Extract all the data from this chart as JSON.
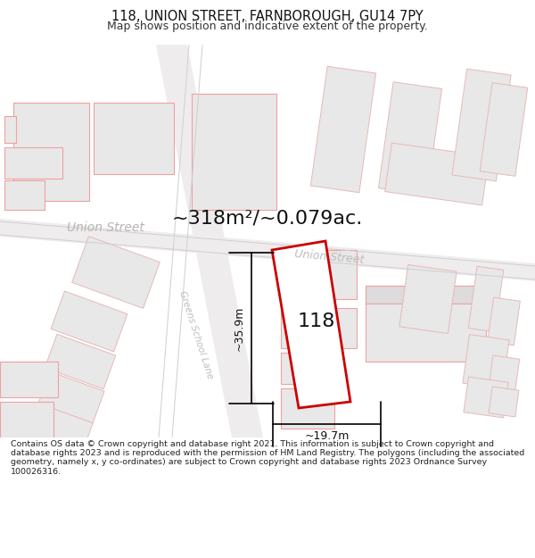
{
  "title": "118, UNION STREET, FARNBOROUGH, GU14 7PY",
  "subtitle": "Map shows position and indicative extent of the property.",
  "footer": "Contains OS data © Crown copyright and database right 2021. This information is subject to Crown copyright and database rights 2023 and is reproduced with the permission of HM Land Registry. The polygons (including the associated geometry, namely x, y co-ordinates) are subject to Crown copyright and database rights 2023 Ordnance Survey 100026316.",
  "area_label": "~318m²/~0.079ac.",
  "number_label": "118",
  "dim_height": "~35.9m",
  "dim_width": "~19.7m",
  "street_label_union_left": "Union Street",
  "street_label_union_road": "Union Street",
  "street_label_greens": "Greens School Lane",
  "map_bg": "#ffffff",
  "page_bg": "#ffffff",
  "building_fill": "#e8e8e8",
  "building_stroke": "#f0a0a0",
  "building_stroke_dark": "#d0d0d0",
  "prop_fill": "#ffffff",
  "prop_stroke": "#cc0000",
  "dim_color": "#111111",
  "street_color_main": "#b0b0b0",
  "street_color_road": "#c0bcbc",
  "road_bg": "#efefef",
  "road_line_color": "#c8c8c8"
}
